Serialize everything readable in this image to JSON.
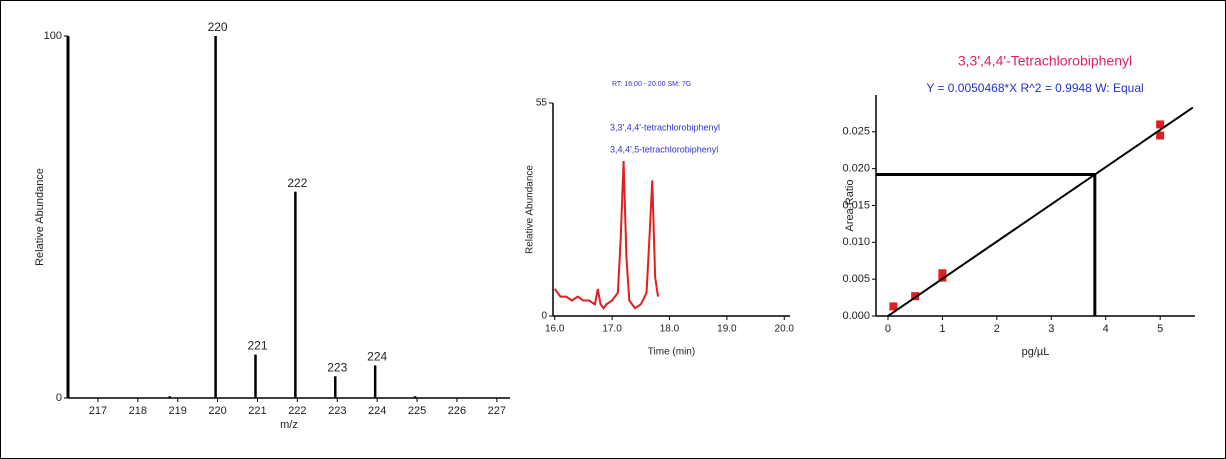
{
  "chart_data": [
    {
      "type": "bar",
      "ylabel": "Relative Abundance",
      "xlabel": "m/z",
      "color": "#000000",
      "x": [
        218.8,
        219.95,
        220.95,
        221.95,
        222.95,
        223.95,
        224.95
      ],
      "values": [
        0.5,
        100,
        12,
        57,
        6,
        9,
        0.5
      ],
      "labels": [
        null,
        "220",
        "221",
        "222",
        "223",
        "224",
        null
      ],
      "xlim": [
        216.25,
        227.33
      ],
      "xticks": [
        217,
        218,
        219,
        220,
        221,
        222,
        223,
        224,
        225,
        226,
        227
      ],
      "ylim": [
        0,
        100
      ],
      "yticks": [
        0,
        100
      ]
    },
    {
      "type": "line",
      "title": "RT: 16.00 - 20.00 SM: 7G",
      "ylabel": "Relative Abundance",
      "xlabel": "Time (min)",
      "annotations": [
        "3,3',4,4'-tetrachlorobiphenyl",
        "3,4,4',5-tetrachlorobiphenyl"
      ],
      "series": [
        {
          "color": "#e02020",
          "x": [
            16.0,
            16.1,
            16.2,
            16.3,
            16.4,
            16.5,
            16.6,
            16.7,
            16.75,
            16.8,
            16.85,
            16.9,
            17.0,
            17.1,
            17.15,
            17.2,
            17.25,
            17.3,
            17.4,
            17.5,
            17.6,
            17.65,
            17.7,
            17.75,
            17.8
          ],
          "values": [
            7,
            5,
            5,
            4,
            5,
            4,
            4,
            3,
            7,
            3,
            2,
            3,
            4,
            6,
            20,
            40,
            15,
            4,
            2,
            3,
            6,
            20,
            35,
            10,
            5
          ]
        }
      ],
      "xlim": [
        15.97,
        20.1
      ],
      "xticks": [
        {
          "value": 16,
          "label": "16.0"
        },
        {
          "value": 17,
          "label": "17.0"
        },
        {
          "value": 18,
          "label": "18.0"
        },
        {
          "value": 19,
          "label": "19.0"
        },
        {
          "value": 20,
          "label": "20.0"
        }
      ],
      "ylim": [
        0,
        55
      ],
      "yticks": [
        0,
        55
      ]
    },
    {
      "type": "scatter",
      "title": "3,3',4,4'-Tetrachlorobiphenyl",
      "subtitle": "Y = 0.0050468*X   R^2 = 0.9948   W: Equal",
      "ylabel": "Area Ratio",
      "xlabel": "pg/µL",
      "series": [
        {
          "kind": "scatter",
          "color": "#e02020",
          "x": [
            0.1,
            0.5,
            1,
            1,
            5,
            5
          ],
          "values": [
            0.0013,
            0.0027,
            0.0052,
            0.0058,
            0.0245,
            0.026
          ]
        },
        {
          "kind": "line",
          "color": "#000000",
          "x": [
            0,
            5.6
          ],
          "values": [
            0,
            0.0283
          ]
        }
      ],
      "marker": {
        "x": 3.8,
        "y": 0.0192
      },
      "xlim": [
        -0.22,
        5.64
      ],
      "xticks": [
        0,
        1,
        2,
        3,
        4,
        5
      ],
      "ylim": [
        0,
        0.03
      ],
      "yticks": [
        {
          "value": 0,
          "label": "0.000"
        },
        {
          "value": 0.005,
          "label": "0.005"
        },
        {
          "value": 0.01,
          "label": "0.010"
        },
        {
          "value": 0.015,
          "label": "0.015"
        },
        {
          "value": 0.02,
          "label": "0.020"
        },
        {
          "value": 0.025,
          "label": "0.025"
        }
      ]
    }
  ]
}
